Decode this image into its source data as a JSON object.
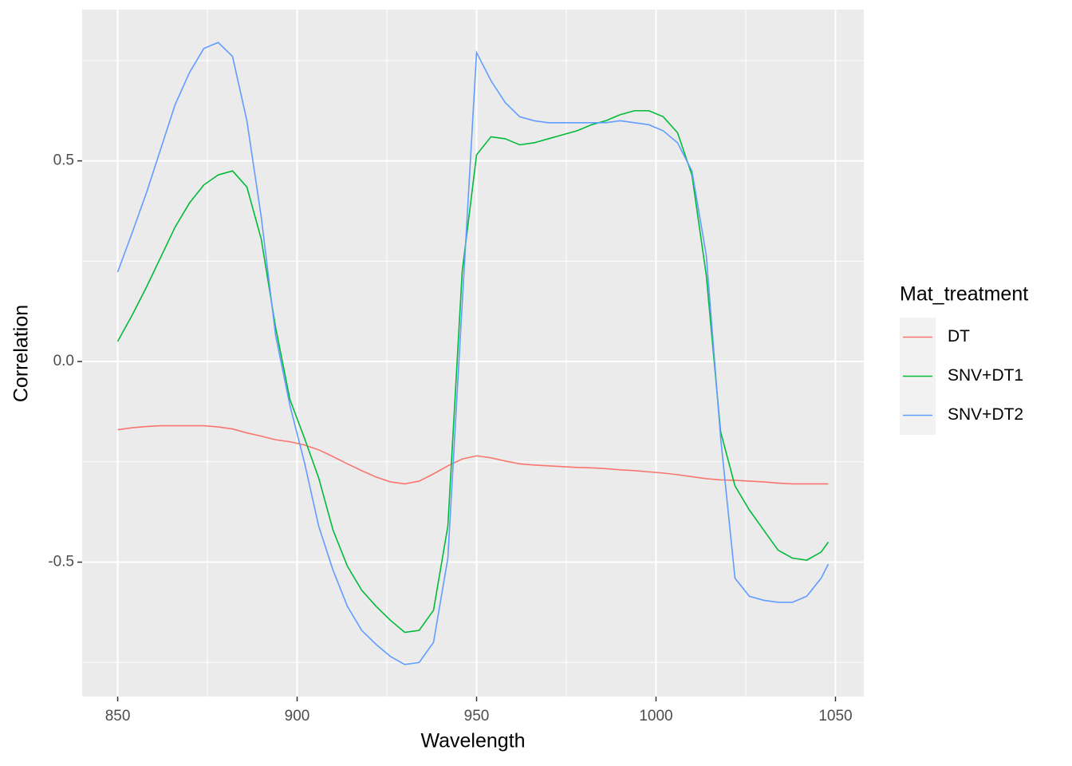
{
  "chart_data": {
    "type": "line",
    "x_label": "Wavelength",
    "y_label": "Correlation",
    "legend_title": "Mat_treatment",
    "legend_position": "right",
    "grid": true,
    "x": [
      850,
      854,
      858,
      862,
      866,
      870,
      874,
      878,
      882,
      886,
      890,
      894,
      898,
      902,
      906,
      910,
      914,
      918,
      922,
      926,
      930,
      934,
      938,
      942,
      946,
      950,
      954,
      958,
      962,
      966,
      970,
      974,
      978,
      982,
      986,
      990,
      994,
      998,
      1002,
      1006,
      1010,
      1014,
      1018,
      1022,
      1026,
      1030,
      1034,
      1038,
      1042,
      1046,
      1048
    ],
    "series": [
      {
        "name": "DT",
        "color": "#F8766D",
        "values": [
          -0.17,
          -0.165,
          -0.162,
          -0.16,
          -0.16,
          -0.16,
          -0.16,
          -0.163,
          -0.168,
          -0.178,
          -0.186,
          -0.195,
          -0.2,
          -0.208,
          -0.22,
          -0.237,
          -0.255,
          -0.272,
          -0.288,
          -0.3,
          -0.305,
          -0.298,
          -0.28,
          -0.26,
          -0.243,
          -0.235,
          -0.24,
          -0.248,
          -0.255,
          -0.258,
          -0.26,
          -0.262,
          -0.264,
          -0.265,
          -0.267,
          -0.27,
          -0.272,
          -0.275,
          -0.278,
          -0.282,
          -0.287,
          -0.292,
          -0.295,
          -0.296,
          -0.298,
          -0.3,
          -0.303,
          -0.305,
          -0.305,
          -0.305,
          -0.305
        ]
      },
      {
        "name": "SNV+DT1",
        "color": "#00BA38",
        "values": [
          0.05,
          0.115,
          0.185,
          0.26,
          0.335,
          0.395,
          0.44,
          0.465,
          0.475,
          0.435,
          0.305,
          0.085,
          -0.095,
          -0.19,
          -0.29,
          -0.42,
          -0.51,
          -0.57,
          -0.61,
          -0.645,
          -0.675,
          -0.67,
          -0.62,
          -0.41,
          0.225,
          0.515,
          0.56,
          0.555,
          0.54,
          0.545,
          0.555,
          0.565,
          0.575,
          0.59,
          0.6,
          0.615,
          0.625,
          0.625,
          0.61,
          0.57,
          0.465,
          0.215,
          -0.175,
          -0.31,
          -0.37,
          -0.42,
          -0.47,
          -0.49,
          -0.495,
          -0.475,
          -0.45
        ]
      },
      {
        "name": "SNV+DT2",
        "color": "#619CFF",
        "values": [
          0.223,
          0.32,
          0.42,
          0.53,
          0.64,
          0.72,
          0.78,
          0.795,
          0.76,
          0.6,
          0.36,
          0.065,
          -0.11,
          -0.25,
          -0.41,
          -0.52,
          -0.61,
          -0.67,
          -0.705,
          -0.735,
          -0.755,
          -0.75,
          -0.7,
          -0.49,
          0.145,
          0.77,
          0.7,
          0.645,
          0.61,
          0.6,
          0.595,
          0.595,
          0.595,
          0.595,
          0.595,
          0.6,
          0.595,
          0.59,
          0.575,
          0.545,
          0.475,
          0.265,
          -0.19,
          -0.54,
          -0.585,
          -0.595,
          -0.6,
          -0.6,
          -0.585,
          -0.54,
          -0.505
        ]
      }
    ],
    "xlim": [
      840.1,
      1057.9
    ],
    "xticks": [
      850,
      900,
      950,
      1000,
      1050
    ],
    "ylim": [
      -0.835,
      0.877
    ],
    "yticks": [
      -0.5,
      {
        "value": 0,
        "label": "0.0"
      },
      0.5
    ]
  }
}
